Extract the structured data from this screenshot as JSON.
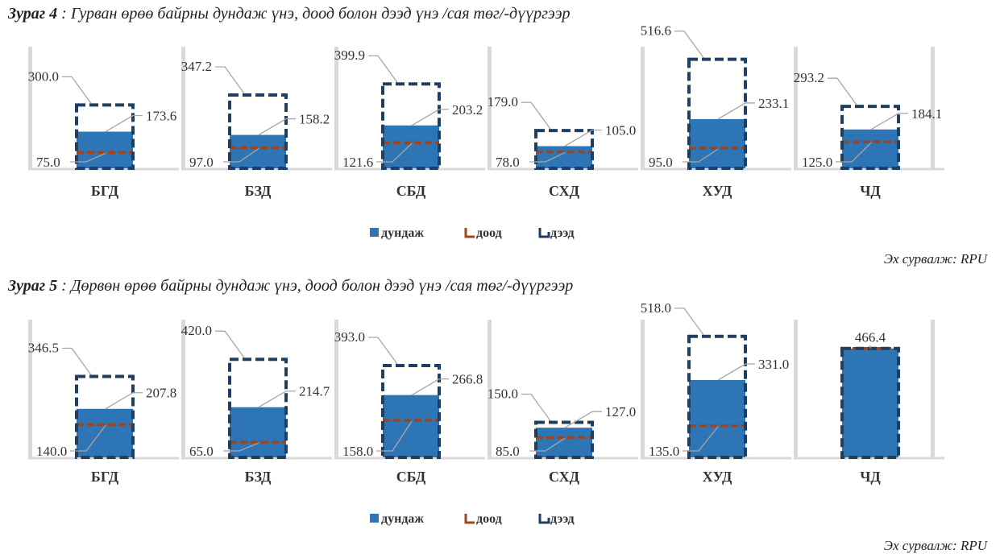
{
  "figure4": {
    "title_label": "Зураг 4",
    "title_text": " : Гурван өрөө байрны дундаж үнэ, доод болон дээд үнэ /сая төг/-дүүргээр",
    "source": "Эх сурвалж: RPU"
  },
  "figure5": {
    "title_label": "Зураг 5",
    "title_text": " : Дөрвөн өрөө байрны дундаж үнэ, доод болон дээд үнэ /сая төг/-дүүргээр",
    "source": "Эх сурвалж: RPU"
  },
  "colors": {
    "avg": "#2e75b6",
    "low": "#a0441c",
    "high": "#1f3f62",
    "panel_bg": "#d9d9d9"
  },
  "chart_data": [
    {
      "type": "bar",
      "title": "Гурван өрөө байрны дундаж үнэ, доод болон дээд үнэ /сая төг/-дүүргээр",
      "categories": [
        "БГД",
        "БЗД",
        "СБД",
        "СХД",
        "ХУД",
        "ЧД"
      ],
      "series": [
        {
          "name": "дундаж",
          "values": [
            173.6,
            158.2,
            203.2,
            105.0,
            233.1,
            184.1
          ]
        },
        {
          "name": "доод",
          "values": [
            75.0,
            97.0,
            121.6,
            78.0,
            95.0,
            125.0
          ]
        },
        {
          "name": "дээд",
          "values": [
            300.0,
            347.2,
            399.9,
            179.0,
            516.6,
            293.2
          ]
        }
      ],
      "labels": {
        "avg": [
          "173.6",
          "158.2",
          "203.2",
          "105.0",
          "233.1",
          "184.1"
        ],
        "low": [
          "75.0",
          "97.0",
          "121.6",
          "78.0",
          "95.0",
          "125.0"
        ],
        "high": [
          "300.0",
          "347.2",
          "399.9",
          "179.0",
          "516.6",
          "293.2"
        ]
      },
      "ylim": [
        0,
        560
      ],
      "legend": [
        "дундаж",
        "доод",
        "дээд"
      ],
      "legend_position": "bottom"
    },
    {
      "type": "bar",
      "title": "Дөрвөн өрөө байрны дундаж үнэ, доод болон дээд үнэ /сая төг/-дүүргээр",
      "categories": [
        "БГД",
        "БЗД",
        "СБД",
        "СХД",
        "ХУД",
        "ЧД"
      ],
      "series": [
        {
          "name": "дундаж",
          "values": [
            207.8,
            214.7,
            266.8,
            127.0,
            331.0,
            466.4
          ]
        },
        {
          "name": "доод",
          "values": [
            140.0,
            65.0,
            158.0,
            85.0,
            135.0,
            466.4
          ]
        },
        {
          "name": "дээд",
          "values": [
            346.5,
            420.0,
            393.0,
            150.0,
            518.0,
            466.4
          ]
        }
      ],
      "labels": {
        "avg": [
          "207.8",
          "214.7",
          "266.8",
          "127.0",
          "331.0",
          ""
        ],
        "low": [
          "140.0",
          "65.0",
          "158.0",
          "85.0",
          "135.0",
          ""
        ],
        "high": [
          "346.5",
          "420.0",
          "393.0",
          "150.0",
          "518.0",
          "466.4"
        ]
      },
      "ylim": [
        0,
        560
      ],
      "legend": [
        "дундаж",
        "доод",
        "дээд"
      ],
      "legend_position": "bottom"
    }
  ]
}
